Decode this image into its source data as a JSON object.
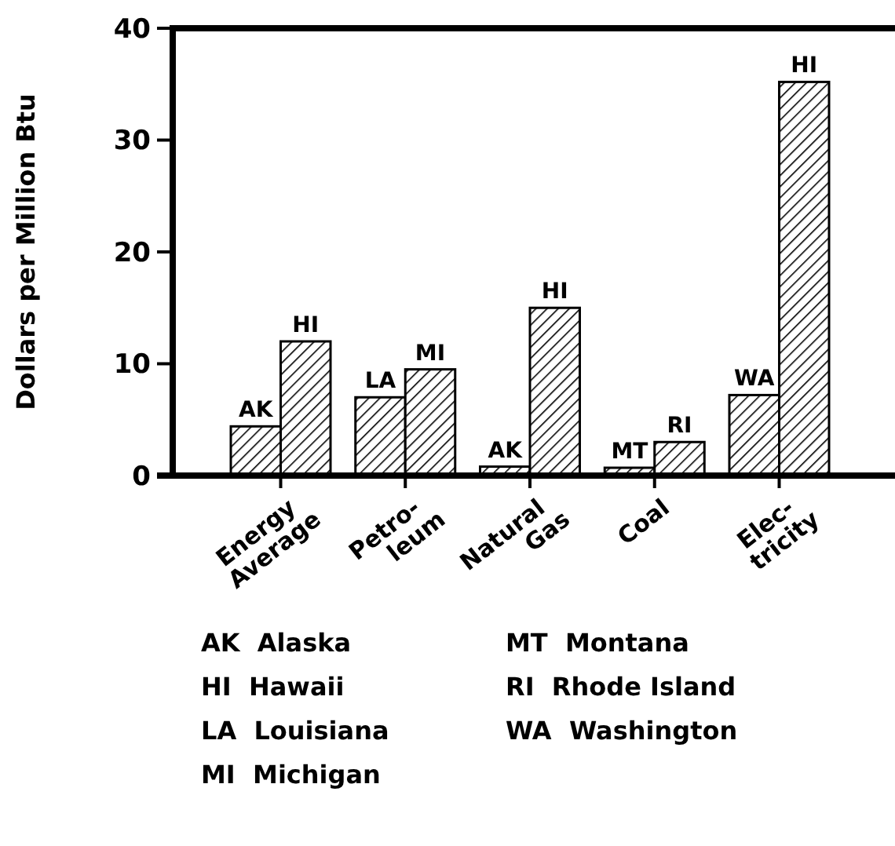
{
  "chart_data": {
    "type": "bar",
    "ylabel": "Dollars per Million Btu",
    "categories": [
      "Energy\nAverage",
      "Petro-\nleum",
      "Natural\nGas",
      "Coal",
      "Elec-\ntricity"
    ],
    "series": [
      {
        "color": "#000000",
        "values": [
          4.4,
          7.0,
          0.8,
          0.7,
          7.2
        ],
        "value_labels": [
          "AK",
          "LA",
          "AK",
          "MT",
          "WA"
        ]
      },
      {
        "color": "#000000",
        "values": [
          12,
          9.5,
          15,
          3.0,
          35.2
        ],
        "value_labels": [
          "HI",
          "MI",
          "HI",
          "RI",
          "HI"
        ]
      }
    ],
    "ylim": [
      0,
      40
    ],
    "yticks": [
      0,
      10,
      20,
      30,
      40
    ],
    "grid": false,
    "annotations": [
      "AK  Alaska",
      "HI  Hawaii",
      "LA  Louisiana",
      "MI  Michigan",
      "MT  Montana",
      "RI  Rhode Island",
      "WA  Washington"
    ]
  }
}
